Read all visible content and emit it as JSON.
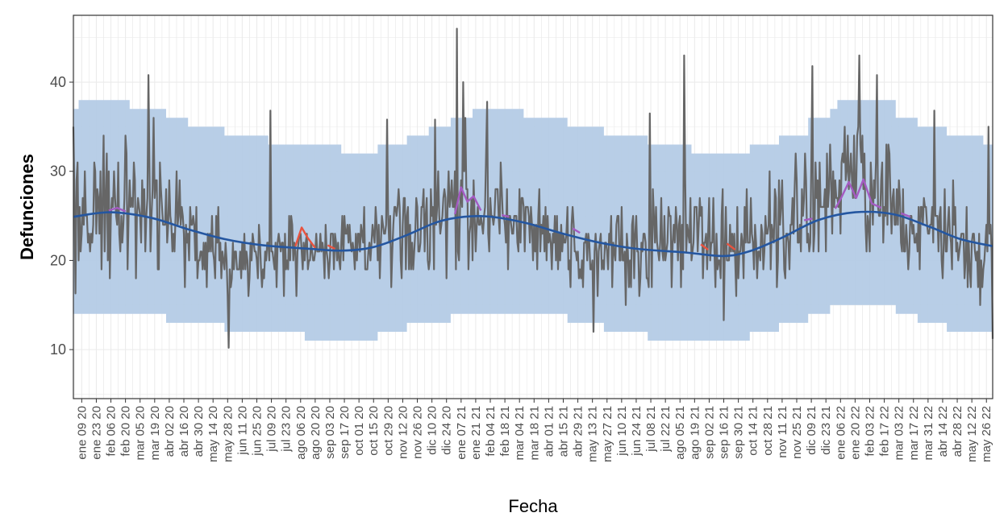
{
  "chart_data": {
    "type": "line",
    "title": "",
    "xlabel": "Fecha",
    "ylabel": "Defunciones",
    "x_range": [
      "2020-01-01",
      "2022-06-01"
    ],
    "ylim": [
      4.5,
      47.5
    ],
    "y_ticks": [
      10,
      20,
      30,
      40
    ],
    "grid": true,
    "legend": "none",
    "x_tick_labels": [
      "ene 09 20",
      "ene 23 20",
      "feb 06 20",
      "feb 20 20",
      "mar 05 20",
      "mar 19 20",
      "abr 02 20",
      "abr 16 20",
      "abr 30 20",
      "may 14 20",
      "may 28 20",
      "jun 11 20",
      "jun 25 20",
      "jul 09 20",
      "jul 23 20",
      "ago 06 20",
      "ago 20 20",
      "sep 03 20",
      "sep 17 20",
      "oct 01 20",
      "oct 15 20",
      "oct 29 20",
      "nov 12 20",
      "nov 26 20",
      "dic 10 20",
      "dic 24 20",
      "ene 07 21",
      "ene 21 21",
      "feb 04 21",
      "feb 18 21",
      "mar 04 21",
      "mar 18 21",
      "abr 01 21",
      "abr 15 21",
      "abr 29 21",
      "may 13 21",
      "may 27 21",
      "jun 10 21",
      "jun 24 21",
      "jul 08 21",
      "jul 22 21",
      "ago 05 21",
      "ago 19 21",
      "sep 02 21",
      "sep 16 21",
      "sep 30 21",
      "oct 14 21",
      "oct 28 21",
      "nov 11 21",
      "nov 25 21",
      "dic 09 21",
      "dic 23 21",
      "ene 06 22",
      "ene 20 22",
      "feb 03 22",
      "feb 17 22",
      "mar 03 22",
      "mar 17 22",
      "mar 31 22",
      "abr 14 22",
      "abr 28 22",
      "may 12 22",
      "may 26 22"
    ],
    "colors": {
      "band": "#b4cbe6",
      "observed": "#666666",
      "expected": "#2456a0",
      "excess_alarm": "#e8533f",
      "excess_high": "#a45bc2",
      "grid": "#ebebeb",
      "panel_border": "#333333"
    },
    "threshold_band": [
      {
        "x": "2020-01-01",
        "lower": 14,
        "upper": 37
      },
      {
        "x": "2020-01-06",
        "lower": 14,
        "upper": 38
      },
      {
        "x": "2020-02-24",
        "lower": 14,
        "upper": 37
      },
      {
        "x": "2020-03-30",
        "lower": 13,
        "upper": 36
      },
      {
        "x": "2020-04-20",
        "lower": 13,
        "upper": 35
      },
      {
        "x": "2020-05-25",
        "lower": 12,
        "upper": 34
      },
      {
        "x": "2020-07-06",
        "lower": 12,
        "upper": 33
      },
      {
        "x": "2020-08-10",
        "lower": 11,
        "upper": 33
      },
      {
        "x": "2020-09-14",
        "lower": 11,
        "upper": 32
      },
      {
        "x": "2020-10-19",
        "lower": 12,
        "upper": 33
      },
      {
        "x": "2020-11-16",
        "lower": 13,
        "upper": 34
      },
      {
        "x": "2020-12-07",
        "lower": 13,
        "upper": 35
      },
      {
        "x": "2020-12-28",
        "lower": 14,
        "upper": 36
      },
      {
        "x": "2021-01-18",
        "lower": 14,
        "upper": 37
      },
      {
        "x": "2021-03-08",
        "lower": 14,
        "upper": 36
      },
      {
        "x": "2021-04-19",
        "lower": 13,
        "upper": 35
      },
      {
        "x": "2021-05-24",
        "lower": 12,
        "upper": 34
      },
      {
        "x": "2021-07-05",
        "lower": 11,
        "upper": 33
      },
      {
        "x": "2021-08-16",
        "lower": 11,
        "upper": 32
      },
      {
        "x": "2021-10-11",
        "lower": 12,
        "upper": 33
      },
      {
        "x": "2021-11-08",
        "lower": 13,
        "upper": 34
      },
      {
        "x": "2021-12-06",
        "lower": 14,
        "upper": 36
      },
      {
        "x": "2021-12-27",
        "lower": 15,
        "upper": 37
      },
      {
        "x": "2022-01-03",
        "lower": 15,
        "upper": 38
      },
      {
        "x": "2022-02-28",
        "lower": 14,
        "upper": 36
      },
      {
        "x": "2022-03-21",
        "lower": 13,
        "upper": 35
      },
      {
        "x": "2022-04-18",
        "lower": 12,
        "upper": 34
      },
      {
        "x": "2022-05-23",
        "lower": 12,
        "upper": 33
      },
      {
        "x": "2022-06-01",
        "lower": 12,
        "upper": 33
      }
    ],
    "expected": [
      {
        "x": "2020-01-01",
        "y": 24.9
      },
      {
        "x": "2020-02-05",
        "y": 25.4
      },
      {
        "x": "2020-03-15",
        "y": 24.8
      },
      {
        "x": "2020-04-20",
        "y": 23.5
      },
      {
        "x": "2020-05-25",
        "y": 22.4
      },
      {
        "x": "2020-07-01",
        "y": 21.7
      },
      {
        "x": "2020-08-15",
        "y": 21.3
      },
      {
        "x": "2020-09-15",
        "y": 21.1
      },
      {
        "x": "2020-10-15",
        "y": 21.5
      },
      {
        "x": "2020-11-15",
        "y": 22.8
      },
      {
        "x": "2020-12-15",
        "y": 24.3
      },
      {
        "x": "2021-01-10",
        "y": 24.9
      },
      {
        "x": "2021-02-05",
        "y": 24.9
      },
      {
        "x": "2021-03-10",
        "y": 24.2
      },
      {
        "x": "2021-04-15",
        "y": 23.0
      },
      {
        "x": "2021-05-20",
        "y": 22.0
      },
      {
        "x": "2021-06-25",
        "y": 21.3
      },
      {
        "x": "2021-08-10",
        "y": 20.9
      },
      {
        "x": "2021-09-15",
        "y": 20.5
      },
      {
        "x": "2021-10-10",
        "y": 21.0
      },
      {
        "x": "2021-11-10",
        "y": 22.5
      },
      {
        "x": "2021-12-15",
        "y": 24.5
      },
      {
        "x": "2022-01-20",
        "y": 25.4
      },
      {
        "x": "2022-02-25",
        "y": 25.2
      },
      {
        "x": "2022-04-01",
        "y": 23.8
      },
      {
        "x": "2022-05-01",
        "y": 22.4
      },
      {
        "x": "2022-06-01",
        "y": 21.6
      }
    ],
    "observed_anchors": [
      {
        "x": "2020-01-01",
        "y": 25
      },
      {
        "x": "2020-02-10",
        "y": 26
      },
      {
        "x": "2020-03-20",
        "y": 26
      },
      {
        "x": "2020-05-01",
        "y": 22
      },
      {
        "x": "2020-06-01",
        "y": 20
      },
      {
        "x": "2020-07-15",
        "y": 21
      },
      {
        "x": "2020-08-20",
        "y": 21
      },
      {
        "x": "2020-09-20",
        "y": 21
      },
      {
        "x": "2020-10-20",
        "y": 22
      },
      {
        "x": "2020-11-20",
        "y": 23
      },
      {
        "x": "2020-12-20",
        "y": 25
      },
      {
        "x": "2021-01-10",
        "y": 27
      },
      {
        "x": "2021-02-10",
        "y": 25
      },
      {
        "x": "2021-03-20",
        "y": 23
      },
      {
        "x": "2021-05-01",
        "y": 21
      },
      {
        "x": "2021-06-15",
        "y": 21
      },
      {
        "x": "2021-07-20",
        "y": 23
      },
      {
        "x": "2021-08-20",
        "y": 24
      },
      {
        "x": "2021-09-20",
        "y": 21
      },
      {
        "x": "2021-10-20",
        "y": 23
      },
      {
        "x": "2021-11-20",
        "y": 25
      },
      {
        "x": "2021-12-20",
        "y": 27
      },
      {
        "x": "2022-01-20",
        "y": 29
      },
      {
        "x": "2022-02-20",
        "y": 26
      },
      {
        "x": "2022-03-20",
        "y": 24
      },
      {
        "x": "2022-04-20",
        "y": 23
      },
      {
        "x": "2022-06-01",
        "y": 20
      }
    ],
    "observed_amplitude": [
      {
        "x": "2020-01-01",
        "a": 6
      },
      {
        "x": "2020-03-01",
        "a": 6
      },
      {
        "x": "2020-05-01",
        "a": 4.5
      },
      {
        "x": "2020-08-01",
        "a": 3.2
      },
      {
        "x": "2020-10-01",
        "a": 3.2
      },
      {
        "x": "2020-12-15",
        "a": 5
      },
      {
        "x": "2021-01-15",
        "a": 7
      },
      {
        "x": "2021-03-01",
        "a": 5
      },
      {
        "x": "2021-05-15",
        "a": 3.5
      },
      {
        "x": "2021-07-01",
        "a": 4.5
      },
      {
        "x": "2021-09-01",
        "a": 4.5
      },
      {
        "x": "2021-11-01",
        "a": 5
      },
      {
        "x": "2022-01-15",
        "a": 7
      },
      {
        "x": "2022-03-15",
        "a": 5
      },
      {
        "x": "2022-06-01",
        "a": 4.5
      }
    ],
    "observed_spikes": [
      {
        "x": "2020-01-01",
        "y": 35
      },
      {
        "x": "2020-01-03",
        "y": 16.3
      },
      {
        "x": "2020-03-13",
        "y": 40.8
      },
      {
        "x": "2020-03-18",
        "y": 36
      },
      {
        "x": "2020-05-29",
        "y": 10.2
      },
      {
        "x": "2020-07-08",
        "y": 36.8
      },
      {
        "x": "2020-10-28",
        "y": 35.8
      },
      {
        "x": "2020-12-13",
        "y": 35.8
      },
      {
        "x": "2021-01-03",
        "y": 46
      },
      {
        "x": "2021-01-09",
        "y": 40
      },
      {
        "x": "2021-02-01",
        "y": 37.8
      },
      {
        "x": "2021-05-14",
        "y": 12
      },
      {
        "x": "2021-07-07",
        "y": 36.5
      },
      {
        "x": "2021-08-09",
        "y": 43
      },
      {
        "x": "2021-09-16",
        "y": 13.3
      },
      {
        "x": "2021-12-10",
        "y": 41.8
      },
      {
        "x": "2022-01-24",
        "y": 43
      },
      {
        "x": "2022-02-10",
        "y": 40.8
      },
      {
        "x": "2022-04-06",
        "y": 36.8
      },
      {
        "x": "2022-05-28",
        "y": 35
      },
      {
        "x": "2022-06-01",
        "y": 11.2
      }
    ],
    "excess_segments": [
      {
        "level": "alarm",
        "points": [
          {
            "x": "2020-08-01",
            "y": 21.6
          },
          {
            "x": "2020-08-07",
            "y": 23.7
          },
          {
            "x": "2020-08-13",
            "y": 22.5
          },
          {
            "x": "2020-08-20",
            "y": 21.4
          }
        ]
      },
      {
        "level": "alarm",
        "points": [
          {
            "x": "2020-09-01",
            "y": 21.7
          },
          {
            "x": "2020-09-08",
            "y": 21.3
          }
        ]
      },
      {
        "level": "high",
        "points": [
          {
            "x": "2020-02-04",
            "y": 25.6
          },
          {
            "x": "2020-02-12",
            "y": 25.9
          },
          {
            "x": "2020-02-20",
            "y": 25.5
          }
        ]
      },
      {
        "level": "high",
        "points": [
          {
            "x": "2021-01-01",
            "y": 25.2
          },
          {
            "x": "2021-01-07",
            "y": 28.2
          },
          {
            "x": "2021-01-13",
            "y": 26.6
          },
          {
            "x": "2021-01-19",
            "y": 27.2
          },
          {
            "x": "2021-01-26",
            "y": 25.6
          }
        ]
      },
      {
        "level": "high",
        "points": [
          {
            "x": "2021-02-15",
            "y": 25.1
          },
          {
            "x": "2021-02-22",
            "y": 24.9
          }
        ]
      },
      {
        "level": "high",
        "points": [
          {
            "x": "2021-04-24",
            "y": 23.6
          },
          {
            "x": "2021-05-01",
            "y": 23.1
          }
        ]
      },
      {
        "level": "alarm",
        "points": [
          {
            "x": "2021-08-25",
            "y": 21.8
          },
          {
            "x": "2021-09-01",
            "y": 21.2
          }
        ]
      },
      {
        "level": "alarm",
        "points": [
          {
            "x": "2021-09-19",
            "y": 21.9
          },
          {
            "x": "2021-09-27",
            "y": 21.2
          }
        ]
      },
      {
        "level": "high",
        "points": [
          {
            "x": "2021-12-02",
            "y": 24.5
          },
          {
            "x": "2021-12-10",
            "y": 24.7
          }
        ]
      },
      {
        "level": "high",
        "points": [
          {
            "x": "2022-01-01",
            "y": 25.8
          },
          {
            "x": "2022-01-07",
            "y": 27.1
          },
          {
            "x": "2022-01-14",
            "y": 28.8
          },
          {
            "x": "2022-01-21",
            "y": 27.0
          },
          {
            "x": "2022-01-28",
            "y": 29.1
          },
          {
            "x": "2022-02-05",
            "y": 26.4
          },
          {
            "x": "2022-02-14",
            "y": 25.9
          }
        ]
      },
      {
        "level": "high",
        "points": [
          {
            "x": "2022-03-05",
            "y": 25.3
          },
          {
            "x": "2022-03-14",
            "y": 24.9
          }
        ]
      }
    ]
  }
}
